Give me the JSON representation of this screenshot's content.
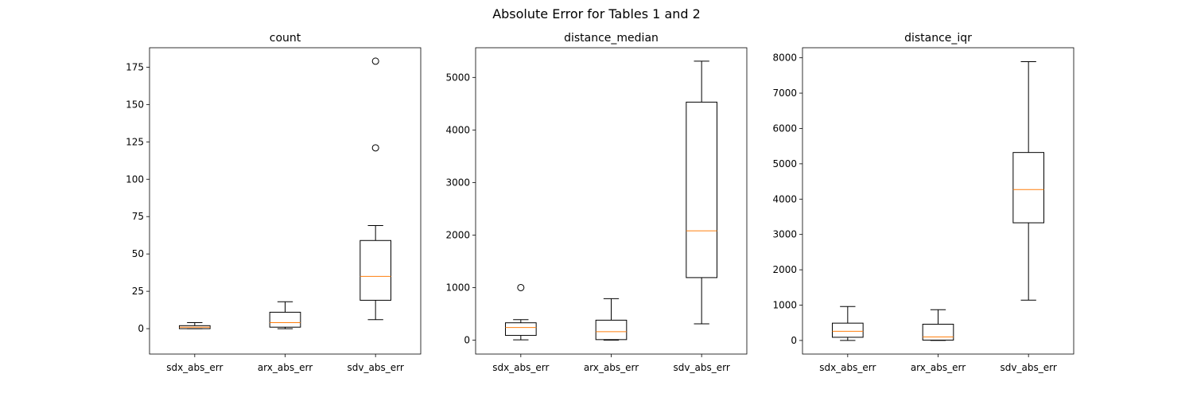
{
  "suptitle": "Absolute Error for Tables 1 and 2",
  "chart_data": [
    {
      "type": "box",
      "title": "count",
      "categories": [
        "sdx_abs_err",
        "arx_abs_err",
        "sdv_abs_err"
      ],
      "ylim": [
        -17,
        188
      ],
      "yticks": [
        0,
        25,
        50,
        75,
        100,
        125,
        150,
        175
      ],
      "boxes": [
        {
          "whisker_low": 0,
          "q1": 0,
          "median": 1,
          "q3": 2,
          "whisker_high": 4,
          "outliers": []
        },
        {
          "whisker_low": 0,
          "q1": 1,
          "median": 4,
          "q3": 11,
          "whisker_high": 18,
          "outliers": []
        },
        {
          "whisker_low": 6,
          "q1": 19,
          "median": 35,
          "q3": 59,
          "whisker_high": 69,
          "outliers": [
            121,
            179
          ]
        }
      ]
    },
    {
      "type": "box",
      "title": "distance_median",
      "categories": [
        "sdx_abs_err",
        "arx_abs_err",
        "sdv_abs_err"
      ],
      "ylim": [
        -265,
        5565
      ],
      "yticks": [
        0,
        1000,
        2000,
        3000,
        4000,
        5000
      ],
      "boxes": [
        {
          "whisker_low": 5,
          "q1": 90,
          "median": 240,
          "q3": 330,
          "whisker_high": 390,
          "outliers": [
            1000
          ]
        },
        {
          "whisker_low": 0,
          "q1": 10,
          "median": 160,
          "q3": 380,
          "whisker_high": 790,
          "outliers": []
        },
        {
          "whisker_low": 310,
          "q1": 1190,
          "median": 2080,
          "q3": 4530,
          "whisker_high": 5310,
          "outliers": []
        }
      ]
    },
    {
      "type": "box",
      "title": "distance_iqr",
      "categories": [
        "sdx_abs_err",
        "arx_abs_err",
        "sdv_abs_err"
      ],
      "ylim": [
        -385,
        8285
      ],
      "yticks": [
        0,
        1000,
        2000,
        3000,
        4000,
        5000,
        6000,
        7000,
        8000
      ],
      "boxes": [
        {
          "whisker_low": 0,
          "q1": 90,
          "median": 260,
          "q3": 490,
          "whisker_high": 960,
          "outliers": []
        },
        {
          "whisker_low": 0,
          "q1": 10,
          "median": 100,
          "q3": 460,
          "whisker_high": 870,
          "outliers": []
        },
        {
          "whisker_low": 1140,
          "q1": 3330,
          "median": 4270,
          "q3": 5320,
          "whisker_high": 7890,
          "outliers": []
        }
      ]
    }
  ],
  "colors": {
    "median": "#ff7f0e",
    "box": "#000000"
  }
}
